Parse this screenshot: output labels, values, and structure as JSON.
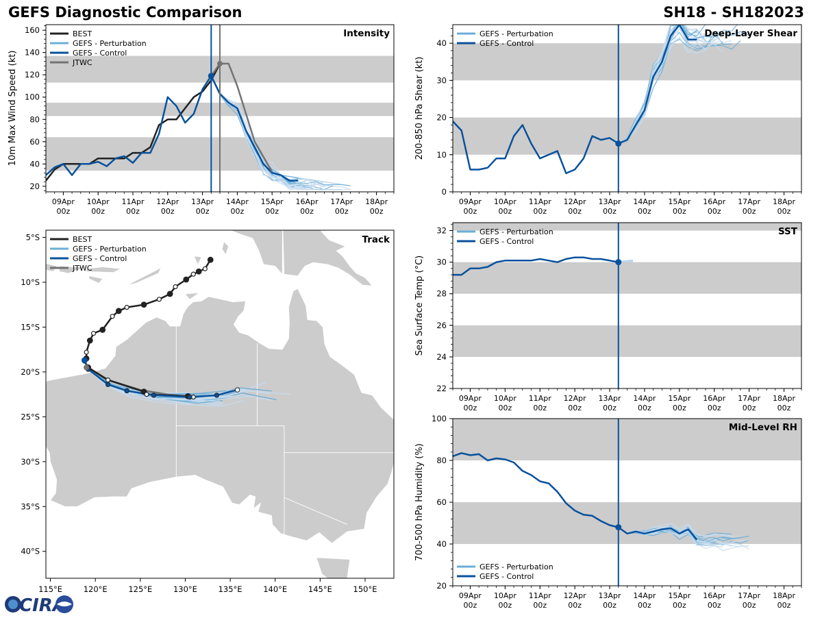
{
  "header": {
    "title": "GEFS Diagnostic Comparison",
    "storm_id": "SH18 - SH182023"
  },
  "logo": {
    "text": "CIRA"
  },
  "colors": {
    "best": "#222222",
    "perturbation": "#6baed6",
    "perturbation_light": "#c6dbef",
    "control": "#08519c",
    "jtwc": "#737373",
    "band": "#cccccc",
    "land": "#cccccc"
  },
  "time_axis": {
    "ticks": [
      {
        "line1": "09Apr",
        "line2": "00z"
      },
      {
        "line1": "10Apr",
        "line2": "00z"
      },
      {
        "line1": "11Apr",
        "line2": "00z"
      },
      {
        "line1": "12Apr",
        "line2": "00z"
      },
      {
        "line1": "13Apr",
        "line2": "00z"
      },
      {
        "line1": "14Apr",
        "line2": "00z"
      },
      {
        "line1": "15Apr",
        "line2": "00z"
      },
      {
        "line1": "16Apr",
        "line2": "00z"
      },
      {
        "line1": "17Apr",
        "line2": "00z"
      },
      {
        "line1": "18Apr",
        "line2": "00z"
      }
    ]
  },
  "chart_data": [
    {
      "id": "intensity",
      "type": "line",
      "title": "Intensity",
      "ylabel": "10m Max Wind Speed (kt)",
      "xlim_hours": [
        -12,
        228
      ],
      "ylim": [
        15,
        165
      ],
      "yticks": [
        20,
        40,
        60,
        80,
        100,
        120,
        140,
        160
      ],
      "bands": [
        [
          34,
          64
        ],
        [
          83,
          95
        ],
        [
          113,
          137
        ]
      ],
      "init_hour": 102,
      "jtwc_hour": 108,
      "legend": [
        "BEST",
        "GEFS - Perturbation",
        "GEFS - Control",
        "JTWC"
      ],
      "series": [
        {
          "name": "BEST",
          "x": [
            -12,
            -6,
            0,
            6,
            12,
            18,
            24,
            30,
            36,
            42,
            48,
            54,
            60,
            66,
            72,
            78,
            84,
            90,
            96,
            102,
            108
          ],
          "y": [
            25,
            35,
            40,
            40,
            40,
            40,
            45,
            45,
            45,
            45,
            50,
            50,
            55,
            75,
            80,
            80,
            90,
            100,
            105,
            115,
            130
          ]
        },
        {
          "name": "GEFS - Control",
          "x": [
            -12,
            -6,
            0,
            6,
            12,
            18,
            24,
            30,
            36,
            42,
            48,
            54,
            60,
            66,
            72,
            78,
            84,
            90,
            96,
            102,
            108,
            114,
            120,
            126,
            132,
            138,
            144,
            150,
            156,
            162
          ],
          "y": [
            30,
            37,
            40,
            30,
            40,
            40,
            42,
            38,
            45,
            47,
            41,
            50,
            50,
            67,
            100,
            92,
            77,
            85,
            107,
            119,
            103,
            95,
            90,
            70,
            55,
            40,
            32,
            30,
            25,
            25
          ]
        },
        {
          "name": "JTWC",
          "x": [
            102,
            108,
            114,
            120,
            132,
            144
          ],
          "y": [
            119,
            130,
            130,
            110,
            60,
            33
          ]
        }
      ]
    },
    {
      "id": "shear",
      "type": "line",
      "title": "Deep-Layer Shear",
      "ylabel": "200-850 hPa Shear (kt)",
      "xlim_hours": [
        -12,
        228
      ],
      "ylim": [
        0,
        45
      ],
      "yticks": [
        0,
        10,
        20,
        30,
        40
      ],
      "bands": [
        [
          10,
          20
        ],
        [
          30,
          40
        ]
      ],
      "init_hour": 102,
      "legend": [
        "GEFS - Perturbation",
        "GEFS - Control"
      ],
      "series": [
        {
          "name": "GEFS - Control",
          "x": [
            -12,
            -6,
            0,
            6,
            12,
            18,
            24,
            30,
            36,
            42,
            48,
            54,
            60,
            66,
            72,
            78,
            84,
            90,
            96,
            102,
            108,
            114,
            120,
            126,
            132,
            138,
            144,
            150,
            156
          ],
          "y": [
            19,
            16.5,
            6,
            6,
            6.5,
            9,
            9,
            15,
            18,
            13,
            9,
            10,
            11,
            5,
            6,
            9,
            15,
            14,
            14.5,
            13,
            14,
            18,
            22,
            31,
            35,
            42,
            45,
            41,
            41
          ]
        }
      ]
    },
    {
      "id": "sst",
      "type": "line",
      "title": "SST",
      "ylabel": "Sea Surface Temp (°C)",
      "xlim_hours": [
        -12,
        228
      ],
      "ylim": [
        22,
        32.5
      ],
      "yticks": [
        22,
        24,
        26,
        28,
        30,
        32
      ],
      "bands": [
        [
          24,
          26
        ],
        [
          28,
          30
        ],
        [
          32,
          32.5
        ]
      ],
      "init_hour": 102,
      "legend": [
        "GEFS - Perturbation",
        "GEFS - Control"
      ],
      "series": [
        {
          "name": "GEFS - Control",
          "x": [
            -12,
            -6,
            0,
            6,
            12,
            18,
            24,
            30,
            36,
            42,
            48,
            54,
            60,
            66,
            72,
            78,
            84,
            90,
            96,
            102
          ],
          "y": [
            29.2,
            29.2,
            29.6,
            29.6,
            29.7,
            30,
            30.1,
            30.1,
            30.1,
            30.1,
            30.2,
            30.1,
            30,
            30.2,
            30.3,
            30.3,
            30.2,
            30.2,
            30.1,
            30
          ]
        }
      ]
    },
    {
      "id": "rh",
      "type": "line",
      "title": "Mid-Level RH",
      "ylabel": "700-500 hPa Humidity (%)",
      "xlim_hours": [
        -12,
        228
      ],
      "ylim": [
        20,
        100
      ],
      "yticks": [
        20,
        40,
        60,
        80,
        100
      ],
      "bands": [
        [
          40,
          60
        ],
        [
          80,
          100
        ]
      ],
      "init_hour": 102,
      "legend": [
        "GEFS - Perturbation",
        "GEFS - Control"
      ],
      "series": [
        {
          "name": "GEFS - Control",
          "x": [
            -12,
            -6,
            0,
            6,
            12,
            18,
            24,
            30,
            36,
            42,
            48,
            54,
            60,
            66,
            72,
            78,
            84,
            90,
            96,
            102,
            108,
            114,
            120,
            126,
            132,
            138,
            144,
            150,
            156
          ],
          "y": [
            82,
            83.5,
            82.5,
            83,
            80,
            81,
            80.5,
            79,
            75,
            73,
            70,
            69,
            65,
            59.5,
            56,
            54,
            53.5,
            51,
            49,
            48,
            45,
            46,
            45,
            46,
            47,
            47.5,
            45,
            47,
            42
          ]
        }
      ]
    },
    {
      "id": "track",
      "type": "map",
      "title": "Track",
      "xlim": [
        114.5,
        153.2
      ],
      "ylim": [
        -43,
        -4.2
      ],
      "xticks": [
        {
          "v": 115,
          "label": "115°E"
        },
        {
          "v": 120,
          "label": "120°E"
        },
        {
          "v": 125,
          "label": "125°E"
        },
        {
          "v": 130,
          "label": "130°E"
        },
        {
          "v": 135,
          "label": "135°E"
        },
        {
          "v": 140,
          "label": "140°E"
        },
        {
          "v": 145,
          "label": "145°E"
        },
        {
          "v": 150,
          "label": "150°E"
        }
      ],
      "yticks": [
        {
          "v": -5,
          "label": "5°S"
        },
        {
          "v": -10,
          "label": "10°S"
        },
        {
          "v": -15,
          "label": "15°S"
        },
        {
          "v": -20,
          "label": "20°S"
        },
        {
          "v": -25,
          "label": "25°S"
        },
        {
          "v": -30,
          "label": "30°S"
        },
        {
          "v": -35,
          "label": "35°S"
        },
        {
          "v": -40,
          "label": "40°S"
        }
      ],
      "legend": [
        "BEST",
        "GEFS - Perturbation",
        "GEFS - Control",
        "JTWC"
      ],
      "best_track": [
        [
          132.8,
          -7.5
        ],
        [
          132.2,
          -8.5
        ],
        [
          131.5,
          -8.8
        ],
        [
          130.9,
          -9.1
        ],
        [
          130.1,
          -9.7
        ],
        [
          128.9,
          -10.5
        ],
        [
          128.3,
          -11.3
        ],
        [
          127.1,
          -11.9
        ],
        [
          125.4,
          -12.5
        ],
        [
          123.5,
          -12.8
        ],
        [
          122.6,
          -13.2
        ],
        [
          121.9,
          -13.8
        ],
        [
          120.8,
          -15.3
        ],
        [
          119.8,
          -15.7
        ],
        [
          119.4,
          -16.5
        ],
        [
          119.0,
          -17.8
        ],
        [
          119.0,
          -18.5
        ],
        [
          118.8,
          -18.8
        ],
        [
          119.2,
          -19.5
        ],
        [
          121.4,
          -20.9
        ],
        [
          125.4,
          -22.2
        ],
        [
          125.7,
          -22.5
        ],
        [
          130.3,
          -22.7
        ],
        [
          130.9,
          -22.8
        ]
      ],
      "control_track": [
        [
          118.8,
          -18.7
        ],
        [
          119.2,
          -19.7
        ],
        [
          121.4,
          -21.4
        ],
        [
          123.5,
          -22.1
        ],
        [
          126.5,
          -22.6
        ],
        [
          130.5,
          -22.8
        ],
        [
          133.5,
          -22.6
        ],
        [
          135.8,
          -22.0
        ]
      ],
      "jtwc_track": [
        [
          119.0,
          -19.5
        ],
        [
          121.4,
          -20.9
        ],
        [
          125.0,
          -22.0
        ],
        [
          128.0,
          -22.5
        ],
        [
          131.0,
          -22.8
        ]
      ]
    }
  ]
}
